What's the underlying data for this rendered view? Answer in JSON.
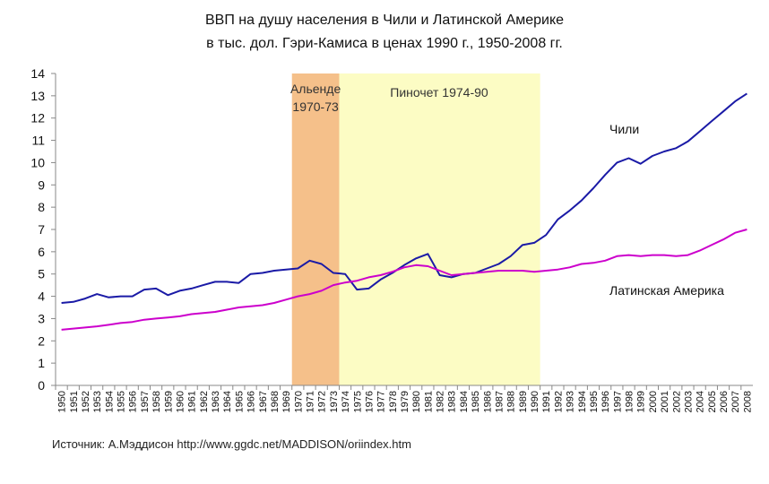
{
  "chart_data": {
    "type": "line",
    "title_line1": "ВВП на душу населения в Чили и Латинской Америке",
    "title_line2": "в тыс. дол. Гэри-Камиса в ценах 1990 г., 1950-2008 гг.",
    "source": "Источник: А.Мэддисон http://www.ggdc.net/MADDISON/oriindex.htm",
    "xlim": [
      1950,
      2008
    ],
    "ylim": [
      0,
      14
    ],
    "yticks": [
      0,
      1,
      2,
      3,
      4,
      5,
      6,
      7,
      8,
      9,
      10,
      11,
      12,
      13,
      14
    ],
    "grid": false,
    "x": [
      1950,
      1951,
      1952,
      1953,
      1954,
      1955,
      1956,
      1957,
      1958,
      1959,
      1960,
      1961,
      1962,
      1963,
      1964,
      1965,
      1966,
      1967,
      1968,
      1969,
      1970,
      1971,
      1972,
      1973,
      1974,
      1975,
      1976,
      1977,
      1978,
      1979,
      1980,
      1981,
      1982,
      1983,
      1984,
      1985,
      1986,
      1987,
      1988,
      1989,
      1990,
      1991,
      1992,
      1993,
      1994,
      1995,
      1996,
      1997,
      1998,
      1999,
      2000,
      2001,
      2002,
      2003,
      2004,
      2005,
      2006,
      2007,
      2008
    ],
    "series": [
      {
        "name": "Чили",
        "color": "#1a1aa6",
        "values": [
          3.7,
          3.75,
          3.9,
          4.1,
          3.95,
          4.0,
          4.0,
          4.3,
          4.35,
          4.05,
          4.25,
          4.35,
          4.5,
          4.65,
          4.65,
          4.6,
          5.0,
          5.05,
          5.15,
          5.2,
          5.25,
          5.6,
          5.45,
          5.05,
          5.0,
          4.3,
          4.35,
          4.75,
          5.05,
          5.4,
          5.7,
          5.9,
          4.95,
          4.85,
          5.0,
          5.05,
          5.25,
          5.45,
          5.8,
          6.3,
          6.4,
          6.75,
          7.45,
          7.85,
          8.3,
          8.85,
          9.45,
          10.0,
          10.2,
          9.95,
          10.3,
          10.5,
          10.65,
          10.95,
          11.4,
          11.85,
          12.3,
          12.75,
          13.1
        ]
      },
      {
        "name": "Латинская Америка",
        "color": "#cc00cc",
        "values": [
          2.5,
          2.55,
          2.6,
          2.65,
          2.72,
          2.8,
          2.85,
          2.95,
          3.0,
          3.05,
          3.1,
          3.2,
          3.25,
          3.3,
          3.4,
          3.5,
          3.55,
          3.6,
          3.7,
          3.85,
          4.0,
          4.1,
          4.25,
          4.5,
          4.62,
          4.7,
          4.85,
          4.95,
          5.1,
          5.3,
          5.4,
          5.35,
          5.15,
          4.95,
          5.0,
          5.05,
          5.1,
          5.15,
          5.15,
          5.15,
          5.1,
          5.15,
          5.2,
          5.3,
          5.45,
          5.5,
          5.6,
          5.8,
          5.85,
          5.8,
          5.85,
          5.85,
          5.8,
          5.85,
          6.05,
          6.3,
          6.55,
          6.85,
          7.0
        ]
      }
    ],
    "periods": [
      {
        "label_line1": "Альенде",
        "label_line2": "1970-73",
        "start": 1970,
        "end": 1974,
        "color": "#f5c08a"
      },
      {
        "label_line1": "Пиночет 1974-90",
        "label_line2": "",
        "start": 1974,
        "end": 1991,
        "color": "#fcfcc4"
      }
    ]
  }
}
